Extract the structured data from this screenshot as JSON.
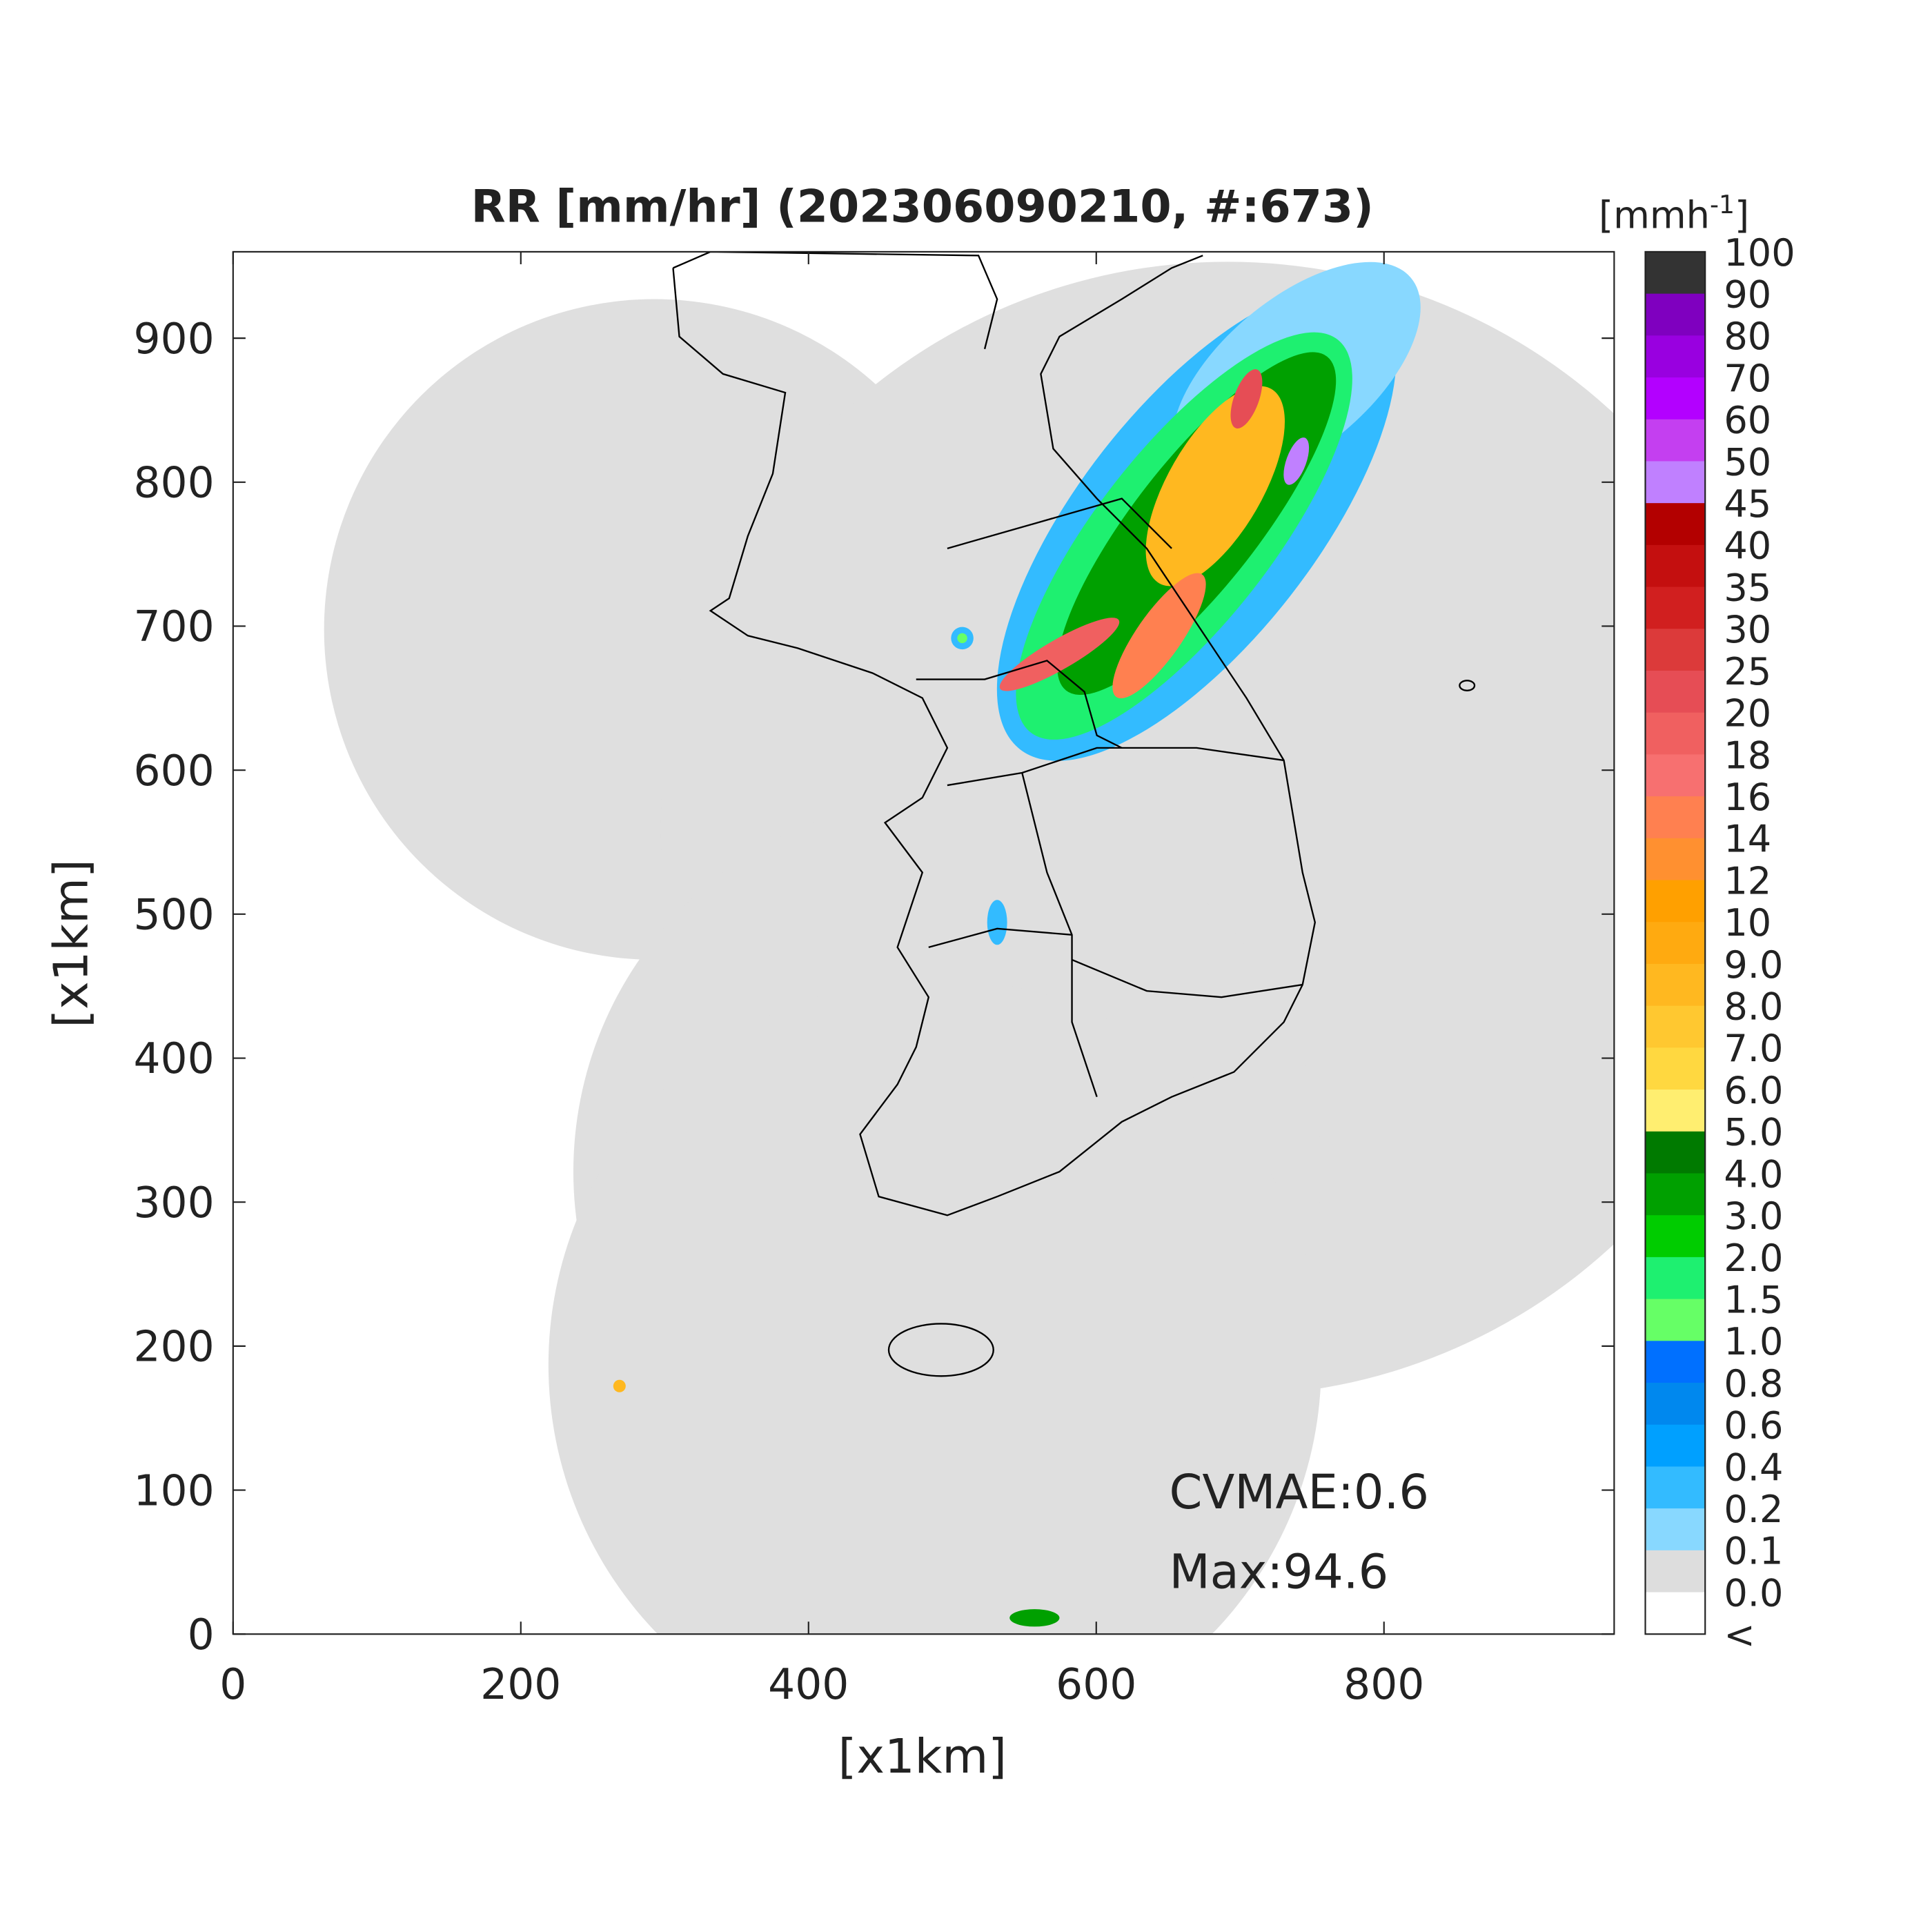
{
  "title": "RR [mm/hr] (202306090210, #:673)",
  "x_axis": {
    "label": "[x1km]",
    "lim": [
      0,
      960
    ],
    "ticks": [
      0,
      200,
      400,
      600,
      800
    ]
  },
  "y_axis": {
    "label": "[x1km]",
    "lim": [
      0,
      960
    ],
    "ticks": [
      0,
      100,
      200,
      300,
      400,
      500,
      600,
      700,
      800,
      900
    ]
  },
  "colorbar": {
    "unit": {
      "text": "[mmh",
      "superscript": "-1",
      "close": "]"
    },
    "labels": [
      "100",
      "90",
      "80",
      "70",
      "60",
      "50",
      "45",
      "40",
      "35",
      "30",
      "25",
      "20",
      "18",
      "16",
      "14",
      "12",
      "10",
      "9.0",
      "8.0",
      "7.0",
      "6.0",
      "5.0",
      "4.0",
      "3.0",
      "2.0",
      "1.5",
      "1.0",
      "0.8",
      "0.6",
      "0.4",
      "0.2",
      "0.1",
      "0.0",
      "<"
    ],
    "colors": [
      "#333333",
      "#7f00bf",
      "#9900e0",
      "#b300ff",
      "#c43ff0",
      "#c080ff",
      "#b30000",
      "#c40f0f",
      "#d11f1f",
      "#dc3a3a",
      "#e64d55",
      "#f06060",
      "#f77070",
      "#ff8050",
      "#ff9030",
      "#ffa000",
      "#ffaa10",
      "#ffb820",
      "#ffc830",
      "#ffd840",
      "#ffee70",
      "#007a00",
      "#00a000",
      "#00cc00",
      "#1ef070",
      "#66ff66",
      "#0070ff",
      "#0088ee",
      "#00a0ff",
      "#33bbff",
      "#88d8ff",
      "#dddddd",
      "#ffffff"
    ]
  },
  "annotations": [
    "CVMAE:0.6",
    "Max:94.6"
  ]
}
